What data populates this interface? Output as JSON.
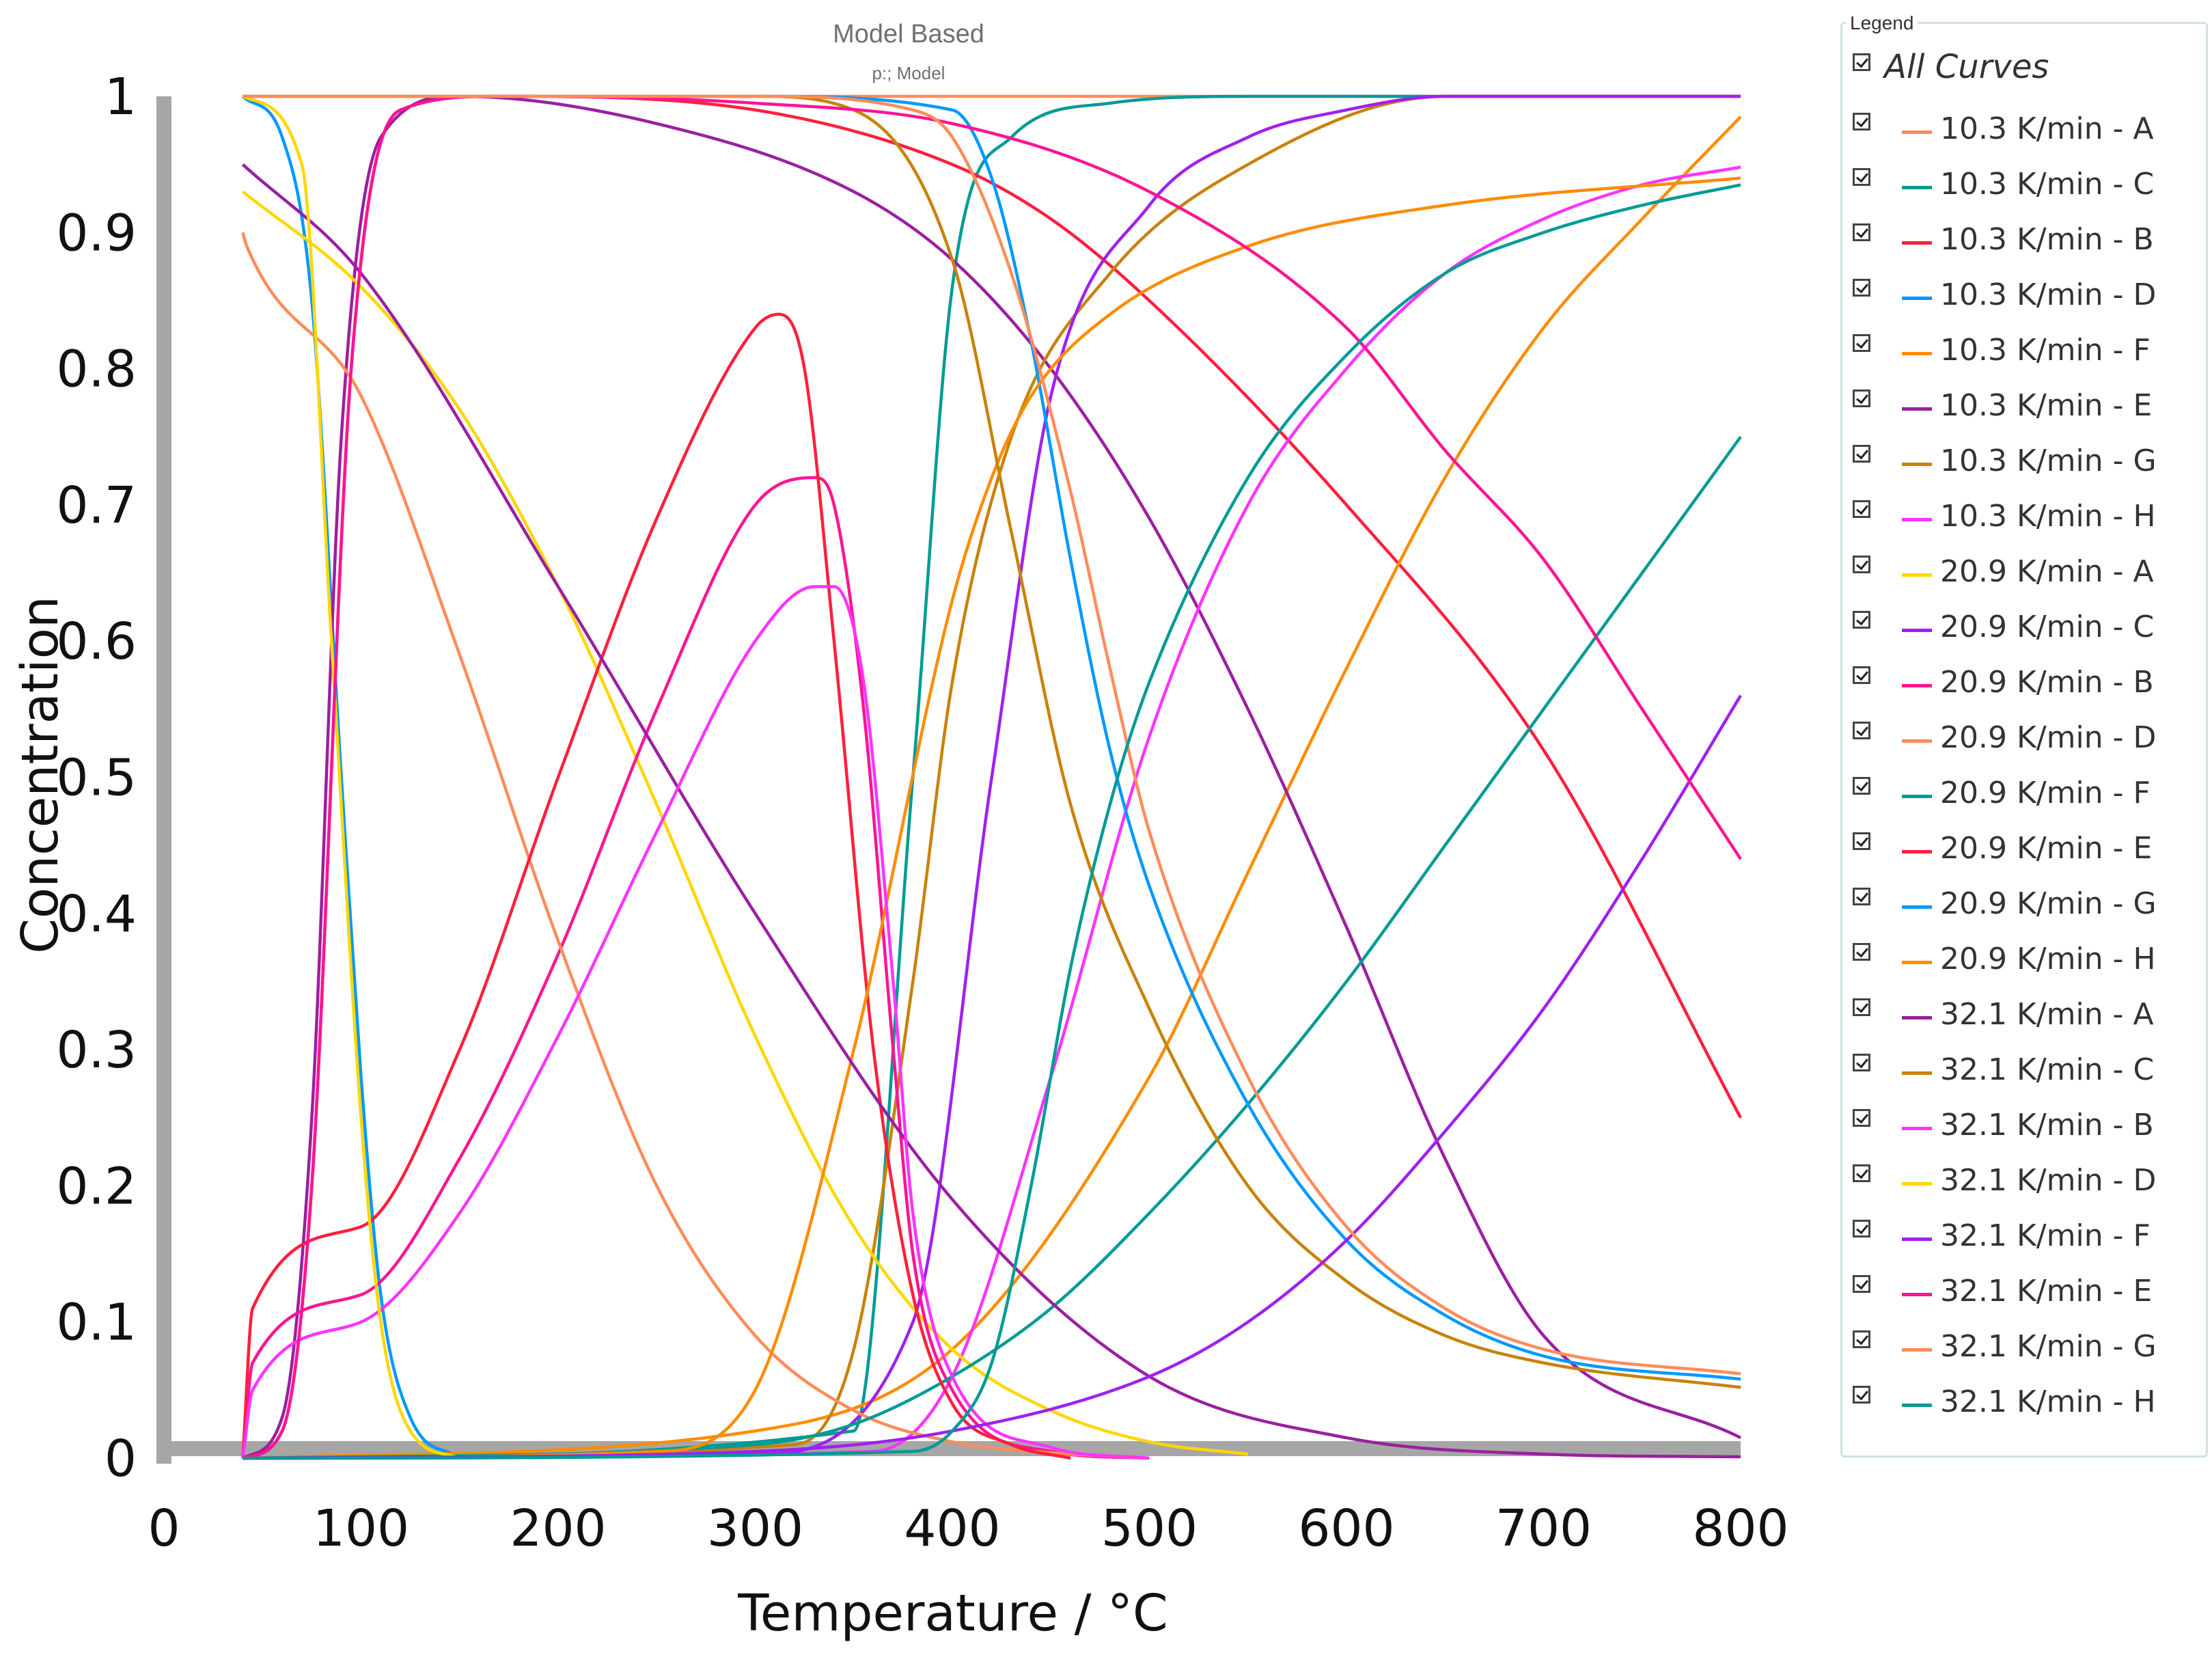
{
  "chart_data": {
    "type": "line",
    "title": "Model Based",
    "subtitle": "p:; Model",
    "xlabel": "Temperature / °C",
    "ylabel": "Concentration",
    "xlim": [
      0,
      800
    ],
    "ylim": [
      0,
      1
    ],
    "x_ticks": [
      "0",
      "100",
      "200",
      "300",
      "400",
      "500",
      "600",
      "700",
      "800"
    ],
    "y_ticks": [
      "0",
      "0.1",
      "0.2",
      "0.3",
      "0.4",
      "0.5",
      "0.6",
      "0.7",
      "0.8",
      "0.9",
      "1"
    ],
    "grid": false,
    "legend_position": "right",
    "series": [
      {
        "name": "10.3 K/min - A",
        "color": "#FF8C5A",
        "x": [
          40,
          100,
          200,
          300,
          400,
          500,
          600,
          700,
          800
        ],
        "y": [
          1,
          1,
          1,
          1,
          1,
          1,
          1,
          1,
          1
        ]
      },
      {
        "name": "10.3 K/min - C",
        "color": "#009B95",
        "x": [
          40,
          350,
          380,
          400,
          430,
          480,
          550,
          650,
          800
        ],
        "y": [
          0,
          0.02,
          0.5,
          0.86,
          0.97,
          0.995,
          1,
          1,
          1
        ]
      },
      {
        "name": "10.3 K/min - B",
        "color": "#FF1F3D",
        "x": [
          40,
          60,
          75,
          95,
          120,
          170,
          300,
          400,
          450,
          500,
          600,
          700,
          800
        ],
        "y": [
          0,
          0.02,
          0.2,
          0.8,
          0.99,
          1,
          0.99,
          0.95,
          0.91,
          0.85,
          0.7,
          0.52,
          0.25
        ]
      },
      {
        "name": "10.3 K/min - D",
        "color": "#0099FF",
        "x": [
          40,
          60,
          75,
          90,
          100,
          110,
          125,
          150
        ],
        "y": [
          1,
          0.97,
          0.85,
          0.5,
          0.28,
          0.12,
          0.03,
          0
        ]
      },
      {
        "name": "10.3 K/min - F",
        "color": "#FF8C00",
        "x": [
          40,
          300,
          400,
          500,
          550,
          600,
          650,
          700,
          750,
          800
        ],
        "y": [
          0,
          0.02,
          0.08,
          0.28,
          0.43,
          0.58,
          0.72,
          0.83,
          0.91,
          0.985
        ]
      },
      {
        "name": "10.3 K/min - E",
        "color": "#9B1FA0",
        "x": [
          40,
          60,
          75,
          90,
          110,
          150,
          250,
          350,
          400,
          450,
          500,
          550,
          600,
          650,
          700,
          800
        ],
        "y": [
          0,
          0.03,
          0.25,
          0.75,
          0.97,
          1,
          0.98,
          0.93,
          0.88,
          0.8,
          0.69,
          0.55,
          0.39,
          0.22,
          0.09,
          0.015
        ]
      },
      {
        "name": "10.3 K/min - G",
        "color": "#C8820A",
        "x": [
          40,
          320,
          350,
          380,
          400,
          430,
          480,
          550,
          650,
          800
        ],
        "y": [
          0,
          0.01,
          0.08,
          0.35,
          0.57,
          0.75,
          0.87,
          0.95,
          1,
          1
        ]
      },
      {
        "name": "10.3 K/min - H",
        "color": "#FF33FF",
        "x": [
          40,
          360,
          400,
          450,
          500,
          550,
          600,
          650,
          700,
          750,
          800
        ],
        "y": [
          0,
          0.005,
          0.06,
          0.28,
          0.53,
          0.7,
          0.8,
          0.87,
          0.91,
          0.935,
          0.948
        ]
      },
      {
        "name": "20.9 K/min - A",
        "color": "#FFD700",
        "x": [
          40,
          100,
          150,
          200,
          250,
          300,
          350,
          400,
          450,
          500,
          550
        ],
        "y": [
          0.93,
          0.86,
          0.77,
          0.64,
          0.48,
          0.31,
          0.17,
          0.08,
          0.035,
          0.012,
          0.003
        ]
      },
      {
        "name": "20.9 K/min - C",
        "color": "#A020F0",
        "x": [
          40,
          300,
          380,
          420,
          450,
          500,
          550,
          600,
          650,
          700,
          800
        ],
        "y": [
          0,
          0.003,
          0.1,
          0.5,
          0.78,
          0.92,
          0.97,
          0.99,
          1,
          1,
          1
        ]
      },
      {
        "name": "20.9 K/min - B",
        "color": "#FF1493",
        "x": [
          40,
          45,
          100,
          150,
          200,
          250,
          300,
          330,
          340,
          355,
          370,
          380,
          400,
          450,
          500
        ],
        "y": [
          0,
          0.07,
          0.12,
          0.22,
          0.37,
          0.55,
          0.7,
          0.72,
          0.7,
          0.55,
          0.3,
          0.15,
          0.05,
          0.005,
          0
        ]
      },
      {
        "name": "20.9 K/min - D",
        "color": "#FF8C5A",
        "x": [
          40,
          42,
          100,
          150,
          200,
          250,
          300,
          350,
          400,
          450,
          500
        ],
        "y": [
          0.9,
          0.89,
          0.78,
          0.59,
          0.38,
          0.2,
          0.09,
          0.035,
          0.012,
          0.004,
          0
        ]
      },
      {
        "name": "20.9 K/min - F",
        "color": "#009B95",
        "x": [
          40,
          300,
          350,
          400,
          450,
          500,
          550,
          600,
          650,
          700,
          750,
          800
        ],
        "y": [
          0,
          0.01,
          0.025,
          0.06,
          0.11,
          0.18,
          0.26,
          0.35,
          0.45,
          0.55,
          0.65,
          0.75
        ]
      },
      {
        "name": "20.9 K/min - E",
        "color": "#FF1F3D",
        "x": [
          40,
          45,
          100,
          150,
          200,
          250,
          300,
          312,
          325,
          340,
          360,
          380,
          400,
          430,
          460
        ],
        "y": [
          0,
          0.11,
          0.17,
          0.3,
          0.5,
          0.69,
          0.83,
          0.84,
          0.8,
          0.6,
          0.3,
          0.12,
          0.04,
          0.01,
          0
        ]
      },
      {
        "name": "20.9 K/min - G",
        "color": "#0099FF",
        "x": [
          40,
          300,
          400,
          420,
          440,
          460,
          480,
          500,
          550,
          600,
          650,
          700,
          800
        ],
        "y": [
          1,
          1,
          0.99,
          0.94,
          0.82,
          0.66,
          0.52,
          0.42,
          0.26,
          0.16,
          0.105,
          0.075,
          0.058
        ]
      },
      {
        "name": "20.9 K/min - H",
        "color": "#FF8C00",
        "x": [
          40,
          250,
          300,
          350,
          400,
          420,
          440,
          480,
          550,
          650,
          800
        ],
        "y": [
          0,
          0.005,
          0.05,
          0.3,
          0.63,
          0.72,
          0.78,
          0.84,
          0.89,
          0.92,
          0.94
        ]
      },
      {
        "name": "32.1 K/min - A",
        "color": "#9B1FA0",
        "x": [
          40,
          100,
          200,
          300,
          400,
          500,
          600,
          700,
          800
        ],
        "y": [
          0.95,
          0.87,
          0.64,
          0.4,
          0.19,
          0.06,
          0.015,
          0.003,
          0.001
        ]
      },
      {
        "name": "32.1 K/min - C",
        "color": "#C8820A",
        "x": [
          40,
          300,
          350,
          400,
          430,
          460,
          500,
          550,
          600,
          650,
          700,
          800
        ],
        "y": [
          1,
          1,
          0.99,
          0.88,
          0.68,
          0.48,
          0.33,
          0.2,
          0.13,
          0.09,
          0.07,
          0.052
        ]
      },
      {
        "name": "32.1 K/min - B",
        "color": "#FF33FF",
        "x": [
          40,
          45,
          100,
          150,
          200,
          250,
          300,
          330,
          340,
          355,
          370,
          380,
          400,
          450,
          500
        ],
        "y": [
          0,
          0.05,
          0.1,
          0.18,
          0.31,
          0.46,
          0.6,
          0.64,
          0.64,
          0.57,
          0.35,
          0.18,
          0.06,
          0.008,
          0
        ]
      },
      {
        "name": "32.1 K/min - D",
        "color": "#FFD700",
        "x": [
          40,
          70,
          85,
          100,
          110,
          125,
          150
        ],
        "y": [
          1,
          0.95,
          0.6,
          0.25,
          0.1,
          0.02,
          0
        ]
      },
      {
        "name": "32.1 K/min - F",
        "color": "#A020F0",
        "x": [
          40,
          300,
          400,
          500,
          550,
          600,
          650,
          700,
          750,
          800
        ],
        "y": [
          0,
          0.005,
          0.02,
          0.06,
          0.1,
          0.16,
          0.24,
          0.33,
          0.44,
          0.56
        ]
      },
      {
        "name": "32.1 K/min - E",
        "color": "#FF1493",
        "x": [
          40,
          60,
          75,
          95,
          120,
          170,
          300,
          400,
          500,
          600,
          650,
          700,
          750,
          800
        ],
        "y": [
          0,
          0.02,
          0.2,
          0.8,
          0.99,
          1,
          0.995,
          0.98,
          0.93,
          0.83,
          0.74,
          0.66,
          0.55,
          0.44
        ]
      },
      {
        "name": "32.1 K/min - G",
        "color": "#FF8C5A",
        "x": [
          40,
          300,
          380,
          400,
          430,
          460,
          480,
          500,
          550,
          600,
          650,
          700,
          800
        ],
        "y": [
          1,
          1,
          0.99,
          0.97,
          0.87,
          0.71,
          0.58,
          0.46,
          0.28,
          0.17,
          0.11,
          0.08,
          0.062
        ]
      },
      {
        "name": "32.1 K/min - H",
        "color": "#009B95",
        "x": [
          40,
          380,
          400,
          420,
          440,
          460,
          480,
          500,
          550,
          600,
          650,
          700,
          750,
          800
        ],
        "y": [
          0,
          0.005,
          0.02,
          0.07,
          0.2,
          0.36,
          0.48,
          0.57,
          0.72,
          0.81,
          0.87,
          0.9,
          0.92,
          0.935
        ]
      }
    ]
  },
  "legend": {
    "caption": "Legend",
    "all_label": "All Curves",
    "all_checked": true
  }
}
